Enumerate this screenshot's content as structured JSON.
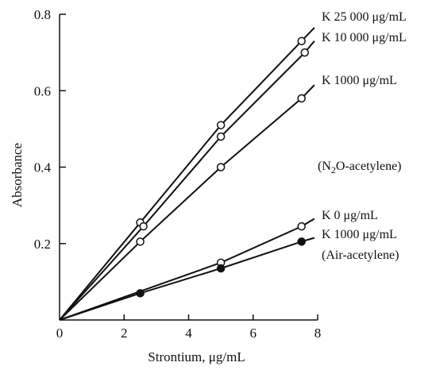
{
  "chart_data": {
    "type": "line",
    "xlabel": "Strontium, μg/mL",
    "ylabel": "Absorbance",
    "xlim": [
      0,
      8
    ],
    "ylim": [
      0,
      0.8
    ],
    "x_ticks": [
      "0",
      "2",
      "4",
      "6",
      "8"
    ],
    "y_ticks": [
      "0.2",
      "0.4",
      "0.6",
      "0.8"
    ],
    "grid": false,
    "legend": "inline labels at right end of each line",
    "annotation": "(N2O-acetylene)",
    "series": [
      {
        "name": "K 25 000 μg/mL",
        "marker": "open-circle",
        "x": [
          0,
          2.5,
          5.0,
          7.5
        ],
        "y": [
          0,
          0.255,
          0.51,
          0.73
        ],
        "end": [
          7.9,
          0.765
        ]
      },
      {
        "name": "K 10 000 μg/mL",
        "marker": "open-circle",
        "x": [
          0,
          2.6,
          5.0,
          7.6
        ],
        "y": [
          0,
          0.245,
          0.48,
          0.7
        ],
        "end": [
          7.9,
          0.73
        ]
      },
      {
        "name": "K 1000 μg/mL",
        "marker": "open-circle",
        "x": [
          0,
          2.5,
          5.0,
          7.5
        ],
        "y": [
          0,
          0.205,
          0.4,
          0.58
        ],
        "end": [
          7.9,
          0.615
        ]
      },
      {
        "name": "K 0 μg/mL",
        "marker": "open-circle",
        "x": [
          0,
          5.0,
          7.5
        ],
        "y": [
          0,
          0.15,
          0.245
        ],
        "end": [
          7.9,
          0.265
        ]
      },
      {
        "name": "K 1000 μg/mL",
        "marker": "filled-circle",
        "x": [
          0,
          2.5,
          5.0,
          7.5
        ],
        "y": [
          0,
          0.07,
          0.135,
          0.205
        ],
        "end": [
          7.9,
          0.215
        ]
      }
    ],
    "text_annotations": {
      "n2o_prefix": "(N",
      "n2o_sub": "2",
      "n2o_suffix": "O-acetylene)",
      "air": "(Air-acetylene)"
    }
  },
  "colors": {
    "ink": "#111111",
    "background": "#ffffff"
  }
}
